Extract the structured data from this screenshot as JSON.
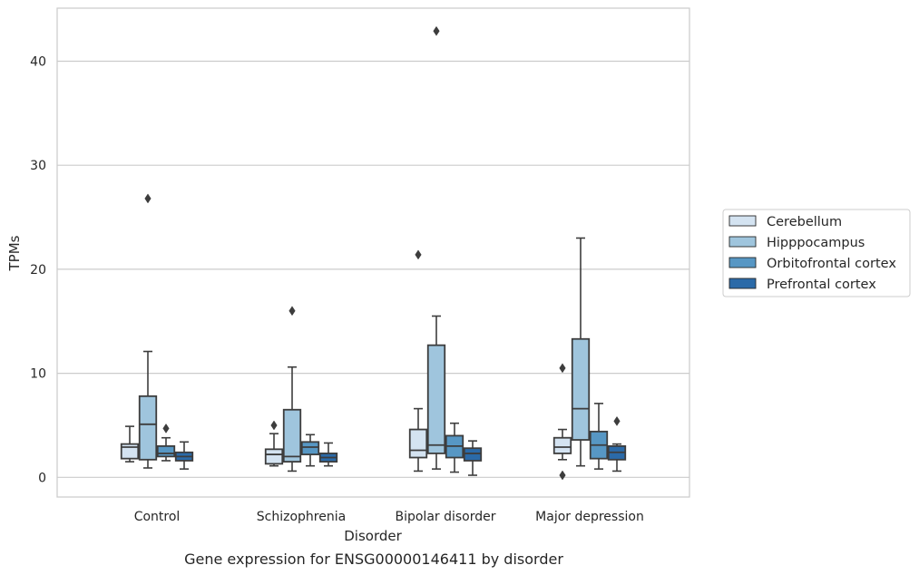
{
  "chart_data": {
    "type": "box",
    "title": "Gene expression for ENSG00000146411 by disorder",
    "xlabel": "Disorder",
    "ylabel": "TPMs",
    "ylim": [
      -1.9,
      45
    ],
    "yticks": [
      0,
      10,
      20,
      30,
      40
    ],
    "grid": "horizontal",
    "legend_position": "right",
    "categories": [
      "Control",
      "Schizophrenia",
      "Bipolar disorder",
      "Major depression"
    ],
    "series": [
      {
        "name": "Cerebellum",
        "color": "#d4e3f1",
        "boxes": [
          {
            "whisker_low": 1.5,
            "q1": 1.8,
            "median": 2.9,
            "q3": 3.2,
            "whisker_high": 4.9,
            "outliers": []
          },
          {
            "whisker_low": 1.1,
            "q1": 1.3,
            "median": 2.2,
            "q3": 2.7,
            "whisker_high": 4.2,
            "outliers": [
              5.0
            ]
          },
          {
            "whisker_low": 0.6,
            "q1": 1.9,
            "median": 2.6,
            "q3": 4.6,
            "whisker_high": 6.6,
            "outliers": [
              21.4
            ]
          },
          {
            "whisker_low": 1.7,
            "q1": 2.3,
            "median": 2.9,
            "q3": 3.8,
            "whisker_high": 4.6,
            "outliers": [
              10.5,
              0.2
            ]
          }
        ]
      },
      {
        "name": "Hipppocampus",
        "color": "#9fc5dd",
        "boxes": [
          {
            "whisker_low": 0.9,
            "q1": 1.7,
            "median": 5.1,
            "q3": 7.8,
            "whisker_high": 12.1,
            "outliers": [
              26.8
            ]
          },
          {
            "whisker_low": 0.6,
            "q1": 1.5,
            "median": 2.0,
            "q3": 6.5,
            "whisker_high": 10.6,
            "outliers": [
              16.0
            ]
          },
          {
            "whisker_low": 0.8,
            "q1": 2.3,
            "median": 3.1,
            "q3": 12.7,
            "whisker_high": 15.5,
            "outliers": [
              42.9
            ]
          },
          {
            "whisker_low": 1.1,
            "q1": 3.6,
            "median": 6.6,
            "q3": 13.3,
            "whisker_high": 23.0,
            "outliers": []
          }
        ]
      },
      {
        "name": "Orbitofrontal cortex",
        "color": "#5797c4",
        "boxes": [
          {
            "whisker_low": 1.6,
            "q1": 2.0,
            "median": 2.3,
            "q3": 3.0,
            "whisker_high": 3.8,
            "outliers": [
              4.7
            ]
          },
          {
            "whisker_low": 1.1,
            "q1": 2.2,
            "median": 2.9,
            "q3": 3.4,
            "whisker_high": 4.1,
            "outliers": []
          },
          {
            "whisker_low": 0.5,
            "q1": 1.9,
            "median": 3.0,
            "q3": 4.0,
            "whisker_high": 5.2,
            "outliers": []
          },
          {
            "whisker_low": 0.8,
            "q1": 1.8,
            "median": 3.1,
            "q3": 4.4,
            "whisker_high": 7.1,
            "outliers": []
          }
        ]
      },
      {
        "name": "Prefrontal cortex",
        "color": "#2b6aa8",
        "boxes": [
          {
            "whisker_low": 0.8,
            "q1": 1.6,
            "median": 2.0,
            "q3": 2.4,
            "whisker_high": 3.4,
            "outliers": []
          },
          {
            "whisker_low": 1.1,
            "q1": 1.5,
            "median": 1.9,
            "q3": 2.3,
            "whisker_high": 3.3,
            "outliers": []
          },
          {
            "whisker_low": 0.2,
            "q1": 1.6,
            "median": 2.3,
            "q3": 2.8,
            "whisker_high": 3.5,
            "outliers": []
          },
          {
            "whisker_low": 0.6,
            "q1": 1.7,
            "median": 2.4,
            "q3": 3.0,
            "whisker_high": 3.2,
            "outliers": [
              5.4
            ]
          }
        ]
      }
    ]
  }
}
